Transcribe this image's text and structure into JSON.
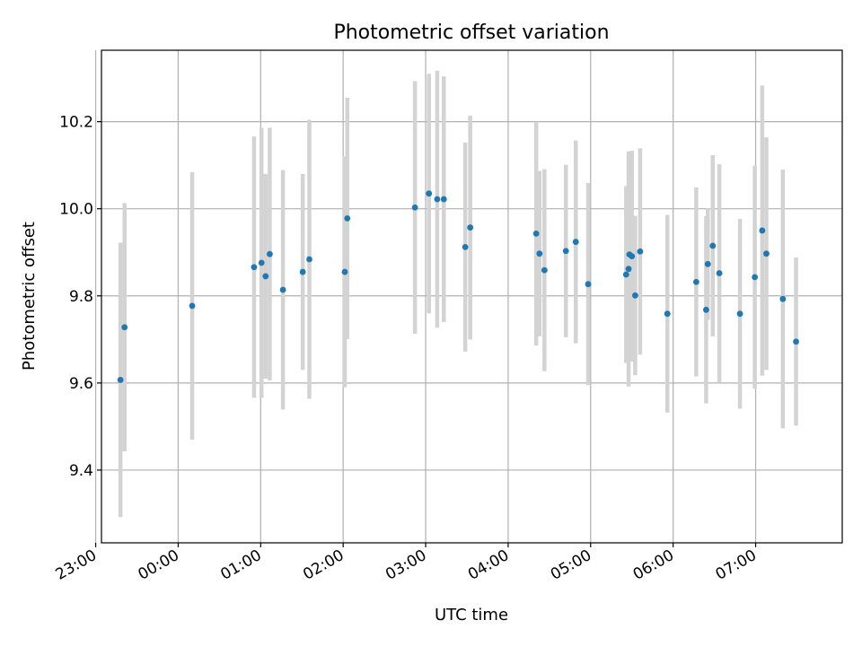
{
  "chart_data": {
    "type": "scatter",
    "title": "Photometric offset variation",
    "xlabel": "UTC time",
    "ylabel": "Photometric offset",
    "xlim": [
      -0.93,
      8.05
    ],
    "ylim": [
      9.233,
      10.364
    ],
    "grid": true,
    "x_unit": "hours relative to 00:00 UTC",
    "x_ticks": [
      -1,
      0,
      1,
      2,
      3,
      4,
      5,
      6,
      7
    ],
    "x_tick_labels": [
      "23:00",
      "00:00",
      "01:00",
      "02:00",
      "03:00",
      "04:00",
      "05:00",
      "06:00",
      "07:00"
    ],
    "y_ticks": [
      9.4,
      9.6,
      9.8,
      10.0,
      10.2
    ],
    "y_tick_labels": [
      "9.4",
      "9.6",
      "9.8",
      "10.0",
      "10.2"
    ],
    "series": [
      {
        "name": "offset",
        "marker_color": "#1f77b4",
        "errorbar_color": "#d3d3d3",
        "x": [
          -0.7,
          -0.65,
          0.17,
          0.92,
          1.01,
          1.06,
          1.11,
          1.27,
          1.51,
          1.59,
          2.02,
          2.05,
          2.87,
          3.04,
          3.14,
          3.22,
          3.48,
          3.54,
          4.34,
          4.38,
          4.44,
          4.7,
          4.82,
          4.97,
          5.43,
          5.46,
          5.47,
          5.5,
          5.54,
          5.6,
          5.93,
          6.28,
          6.4,
          6.42,
          6.48,
          6.56,
          6.81,
          6.99,
          7.08,
          7.13,
          7.33,
          7.49
        ],
        "y": [
          9.607,
          9.728,
          9.777,
          9.866,
          9.876,
          9.845,
          9.896,
          9.814,
          9.855,
          9.884,
          9.855,
          9.978,
          10.003,
          10.035,
          10.022,
          10.022,
          9.912,
          9.957,
          9.943,
          9.897,
          9.859,
          9.903,
          9.924,
          9.827,
          9.849,
          9.862,
          9.895,
          9.891,
          9.801,
          9.902,
          9.759,
          9.832,
          9.768,
          9.873,
          9.915,
          9.852,
          9.759,
          9.843,
          9.95,
          9.897,
          9.793,
          9.695
        ],
        "y_err": [
          0.315,
          0.285,
          0.307,
          0.3,
          0.31,
          0.235,
          0.29,
          0.275,
          0.225,
          0.32,
          0.265,
          0.277,
          0.29,
          0.275,
          0.295,
          0.282,
          0.24,
          0.257,
          0.257,
          0.19,
          0.232,
          0.198,
          0.233,
          0.232,
          0.203,
          0.27,
          0.235,
          0.242,
          0.183,
          0.237,
          0.227,
          0.217,
          0.215,
          0.128,
          0.208,
          0.25,
          0.218,
          0.256,
          0.333,
          0.267,
          0.297,
          0.193
        ]
      }
    ]
  }
}
